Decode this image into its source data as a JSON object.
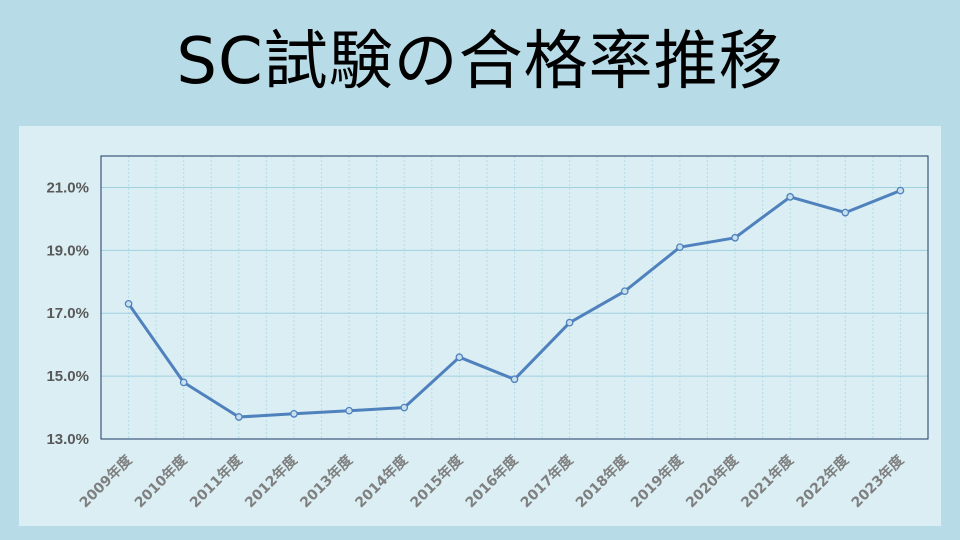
{
  "slide": {
    "title": "SC試験の合格率推移"
  },
  "colors": {
    "background": "#b7dbe7",
    "plot_area": "#daeef4",
    "line": "#4f81bd",
    "grid_major": "#9fd0e0",
    "grid_minor": "#b5dce8",
    "frame": "#1f3864"
  },
  "chart_data": {
    "type": "line",
    "title": "",
    "xlabel": "",
    "ylabel": "",
    "categories": [
      "2009年度",
      "2010年度",
      "2011年度",
      "2012年度",
      "2013年度",
      "2014年度",
      "2015年度",
      "2016年度",
      "2017年度",
      "2018年度",
      "2019年度",
      "2020年度",
      "2021年度",
      "2022年度",
      "2023年度"
    ],
    "values": [
      17.3,
      14.8,
      13.7,
      13.8,
      13.9,
      14.0,
      15.6,
      14.9,
      16.7,
      17.7,
      19.1,
      19.4,
      20.7,
      20.2,
      20.9
    ],
    "ylim": [
      13.0,
      22.0
    ],
    "yticks": [
      "13.0%",
      "15.0%",
      "17.0%",
      "19.0%",
      "21.0%"
    ],
    "ytick_values": [
      13,
      15,
      17,
      19,
      21
    ],
    "grid": true,
    "legend": "none",
    "markers": "circle"
  }
}
